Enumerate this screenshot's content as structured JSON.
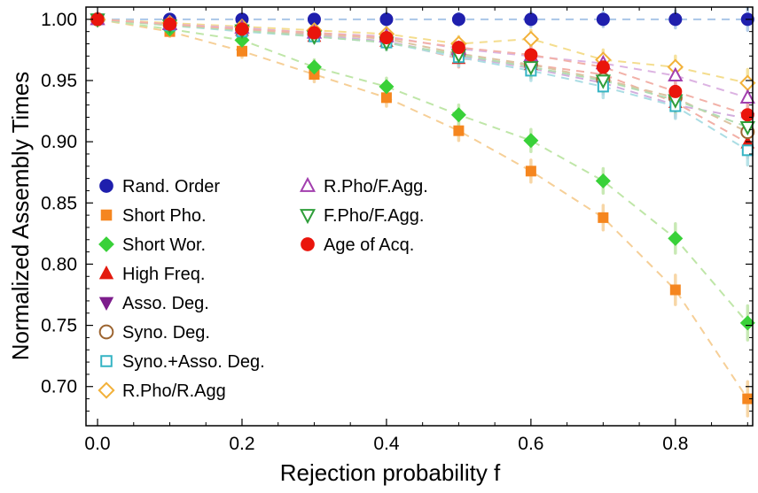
{
  "chart_data": {
    "type": "scatter",
    "title": "",
    "xlabel": "Rejection probability f",
    "ylabel": "Normalized Assembly Times",
    "x": [
      0.0,
      0.1,
      0.2,
      0.3,
      0.4,
      0.5,
      0.6,
      0.7,
      0.8,
      0.9
    ],
    "xlim": [
      -0.016,
      0.907
    ],
    "ylim": [
      0.668,
      1.01
    ],
    "xticks": [
      0.0,
      0.2,
      0.4,
      0.6,
      0.8
    ],
    "xtick_labels": [
      "0.0",
      "0.2",
      "0.4",
      "0.6",
      "0.8"
    ],
    "yticks": [
      0.7,
      0.75,
      0.8,
      0.85,
      0.9,
      0.95,
      1.0
    ],
    "ytick_labels": [
      "0.70",
      "0.75",
      "0.80",
      "0.85",
      "0.90",
      "0.95",
      "1.00"
    ],
    "grid": false,
    "line_style": "dashed",
    "legend_position": "inside-lower-left",
    "series": [
      {
        "name": "Rand. Order",
        "marker": "circle",
        "fill": "filled",
        "color": "#1f1fad",
        "line_color": "#a9c6e8",
        "values": [
          1.0,
          1.0,
          1.0,
          1.0,
          1.0,
          1.0,
          1.0,
          1.0,
          1.0,
          1.0
        ],
        "errors": [
          0.003,
          0.003,
          0.004,
          0.004,
          0.005,
          0.005,
          0.006,
          0.006,
          0.007,
          0.009
        ]
      },
      {
        "name": "Short Pho.",
        "marker": "square",
        "fill": "filled",
        "color": "#f5861f",
        "line_color": "#f6cf97",
        "values": [
          1.0,
          0.99,
          0.974,
          0.955,
          0.936,
          0.909,
          0.876,
          0.838,
          0.779,
          0.69
        ],
        "errors": [
          0.003,
          0.004,
          0.005,
          0.006,
          0.007,
          0.008,
          0.009,
          0.01,
          0.012,
          0.014
        ]
      },
      {
        "name": "Short Wor.",
        "marker": "diamond",
        "fill": "filled",
        "color": "#39d139",
        "line_color": "#bfe6a8",
        "values": [
          1.0,
          0.992,
          0.983,
          0.961,
          0.945,
          0.922,
          0.901,
          0.868,
          0.821,
          0.752
        ],
        "errors": [
          0.003,
          0.004,
          0.005,
          0.006,
          0.007,
          0.008,
          0.009,
          0.01,
          0.012,
          0.014
        ]
      },
      {
        "name": "High Freq.",
        "marker": "triangle-up",
        "fill": "filled",
        "color": "#e31a0f",
        "line_color": "#f2afa6",
        "values": [
          1.0,
          0.996,
          0.991,
          0.986,
          0.982,
          0.968,
          0.963,
          0.955,
          0.932,
          0.899
        ],
        "errors": [
          0.003,
          0.003,
          0.004,
          0.005,
          0.006,
          0.007,
          0.008,
          0.009,
          0.01,
          0.012
        ]
      },
      {
        "name": "Asso. Deg.",
        "marker": "triangle-down",
        "fill": "filled",
        "color": "#7d1d8c",
        "line_color": "#d2aede",
        "values": [
          1.0,
          0.996,
          0.991,
          0.987,
          0.982,
          0.97,
          0.96,
          0.948,
          0.93,
          0.919
        ],
        "errors": [
          0.003,
          0.003,
          0.004,
          0.005,
          0.006,
          0.007,
          0.008,
          0.009,
          0.01,
          0.012
        ]
      },
      {
        "name": "Syno. Deg.",
        "marker": "circle",
        "fill": "open",
        "color": "#9c6430",
        "line_color": "#dcc3a2",
        "values": [
          1.0,
          0.996,
          0.992,
          0.988,
          0.984,
          0.972,
          0.963,
          0.951,
          0.936,
          0.908
        ],
        "errors": [
          0.003,
          0.003,
          0.004,
          0.005,
          0.006,
          0.007,
          0.008,
          0.009,
          0.01,
          0.012
        ]
      },
      {
        "name": "Syno.+Asso. Deg.",
        "marker": "square",
        "fill": "open",
        "color": "#35b4c4",
        "line_color": "#abdde4",
        "values": [
          1.0,
          0.995,
          0.99,
          0.986,
          0.981,
          0.969,
          0.958,
          0.945,
          0.929,
          0.893
        ],
        "errors": [
          0.003,
          0.003,
          0.004,
          0.005,
          0.006,
          0.007,
          0.008,
          0.009,
          0.01,
          0.012
        ]
      },
      {
        "name": "R.Pho/R.Agg",
        "marker": "diamond",
        "fill": "open",
        "color": "#f2b13a",
        "line_color": "#f4dd8e",
        "values": [
          1.0,
          0.997,
          0.994,
          0.991,
          0.988,
          0.98,
          0.984,
          0.967,
          0.961,
          0.948
        ],
        "errors": [
          0.003,
          0.003,
          0.004,
          0.004,
          0.005,
          0.006,
          0.007,
          0.008,
          0.009,
          0.011
        ]
      },
      {
        "name": "R.Pho/F.Agg.",
        "marker": "triangle-up",
        "fill": "open",
        "color": "#a23fae",
        "line_color": "#dcb3e2",
        "values": [
          1.0,
          0.996,
          0.993,
          0.989,
          0.986,
          0.976,
          0.97,
          0.964,
          0.954,
          0.936
        ],
        "errors": [
          0.003,
          0.003,
          0.004,
          0.004,
          0.005,
          0.006,
          0.007,
          0.008,
          0.009,
          0.011
        ]
      },
      {
        "name": "F.Pho/F.Agg.",
        "marker": "triangle-down",
        "fill": "open",
        "color": "#2f9e3a",
        "line_color": "#b2dcb2",
        "values": [
          1.0,
          0.995,
          0.991,
          0.986,
          0.981,
          0.971,
          0.961,
          0.95,
          0.934,
          0.912
        ],
        "errors": [
          0.003,
          0.003,
          0.004,
          0.005,
          0.006,
          0.007,
          0.008,
          0.009,
          0.01,
          0.012
        ]
      },
      {
        "name": "Age of Acq.",
        "marker": "circle",
        "fill": "filled",
        "color": "#ea150c",
        "line_color": "#f2b1a8",
        "values": [
          1.0,
          0.996,
          0.992,
          0.989,
          0.985,
          0.977,
          0.971,
          0.961,
          0.941,
          0.922
        ],
        "errors": [
          0.003,
          0.003,
          0.004,
          0.005,
          0.006,
          0.007,
          0.008,
          0.009,
          0.01,
          0.012
        ]
      }
    ],
    "legend_columns": [
      [
        "Rand. Order",
        "Short Pho.",
        "Short Wor.",
        "High Freq.",
        "Asso. Deg.",
        "Syno. Deg.",
        "Syno.+Asso. Deg.",
        "R.Pho/R.Agg"
      ],
      [
        "R.Pho/F.Agg.",
        "F.Pho/F.Agg.",
        "Age of Acq."
      ]
    ]
  }
}
